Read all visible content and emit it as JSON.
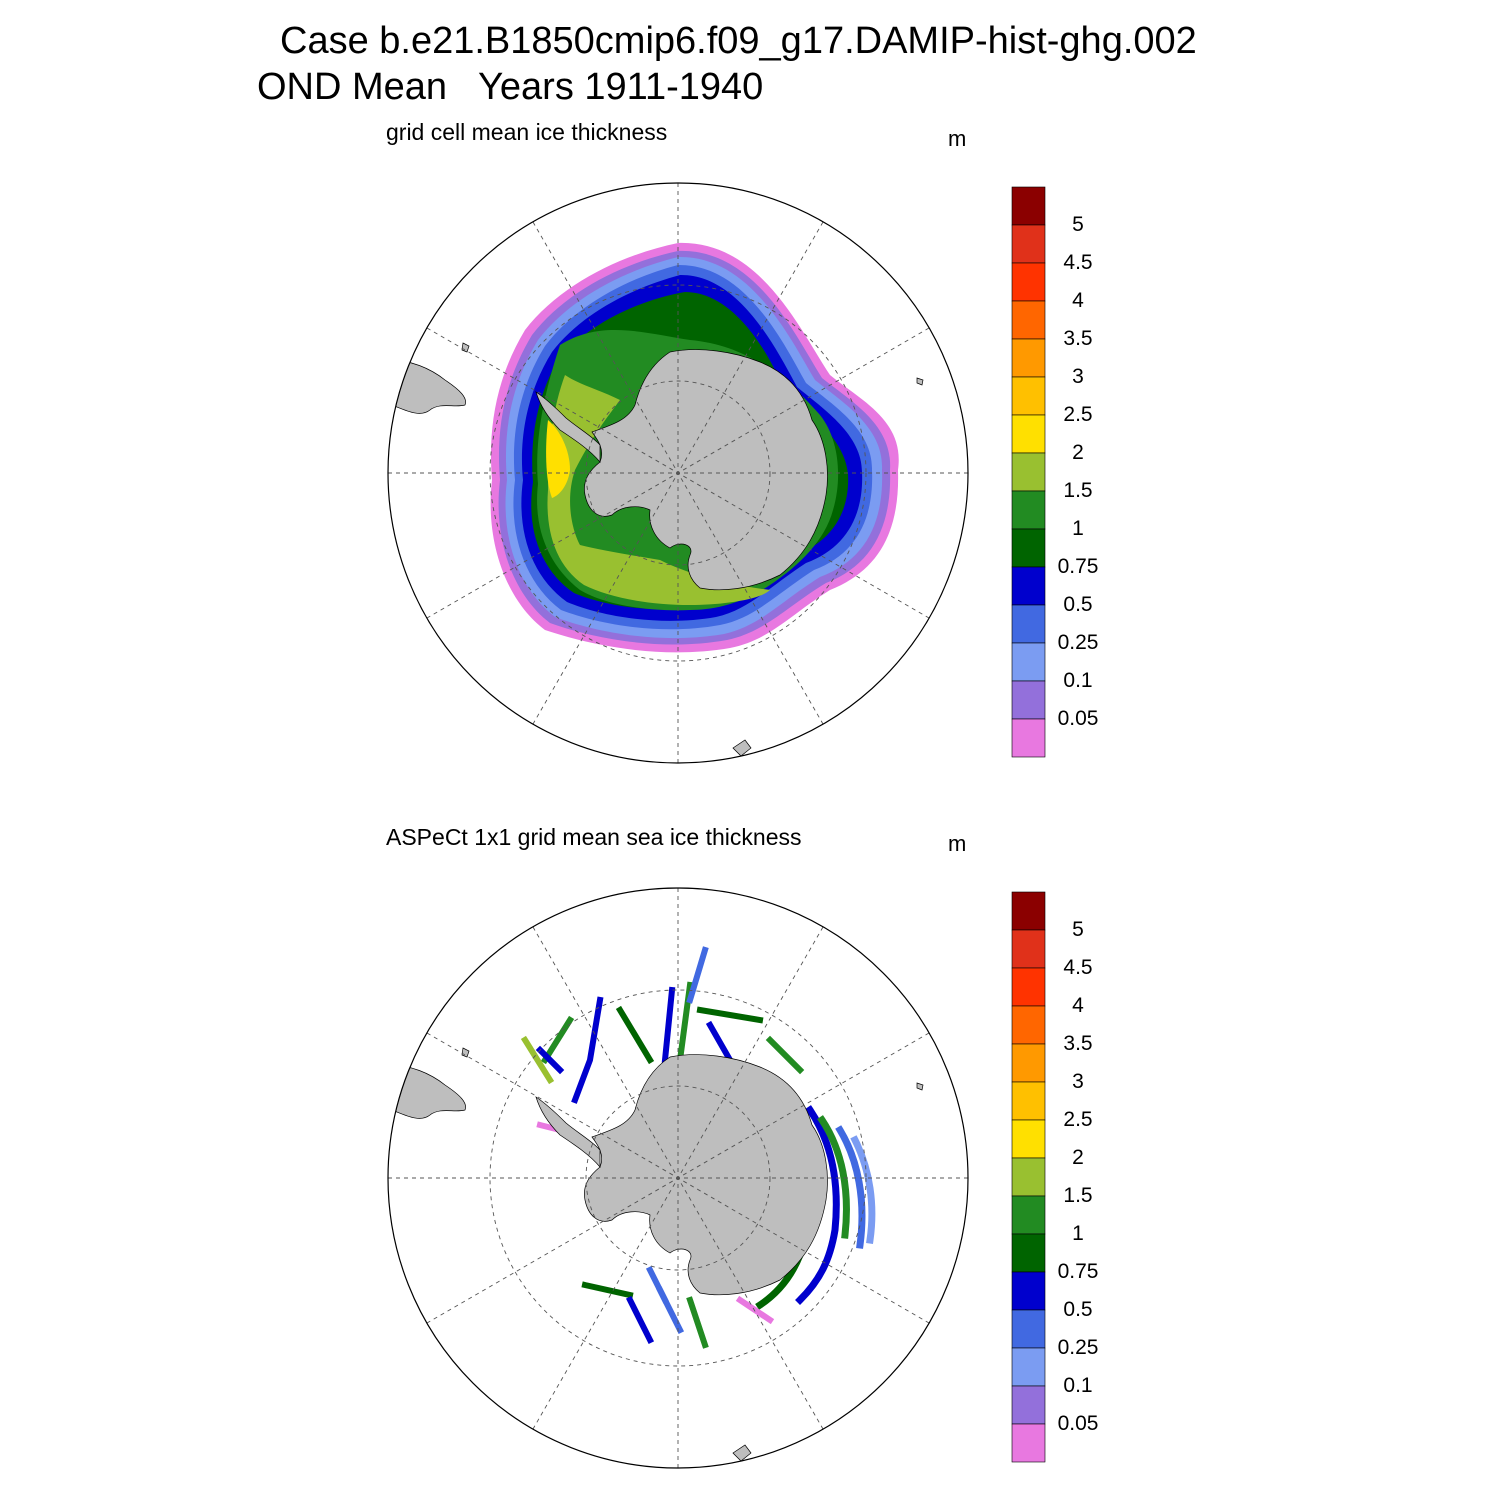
{
  "header": {
    "line1": "Case b.e21.B1850cmip6.f09_g17.DAMIP-hist-ghg.002",
    "line2": "OND Mean   Years 1911-1940"
  },
  "panels": [
    {
      "title": "grid cell mean ice thickness",
      "unit": "m",
      "dataset": "model"
    },
    {
      "title": "ASPeCt 1x1 grid mean sea ice thickness",
      "unit": "m",
      "dataset": "observations"
    }
  ],
  "colorbar": {
    "labels": [
      "5",
      "4.5",
      "4",
      "3.5",
      "3",
      "2.5",
      "2",
      "1.5",
      "1",
      "0.75",
      "0.5",
      "0.25",
      "0.1",
      "0.05"
    ],
    "colors": [
      "#8b0000",
      "#e0311a",
      "#ff3300",
      "#ff6600",
      "#ff9900",
      "#ffc000",
      "#ffe000",
      "#99c030",
      "#228b22",
      "#006400",
      "#0000cd",
      "#4169e1",
      "#7b9cf2",
      "#9370db",
      "#e878e0"
    ]
  },
  "style": {
    "land_color": "#bebebe",
    "grid_line_color": "#555555"
  }
}
